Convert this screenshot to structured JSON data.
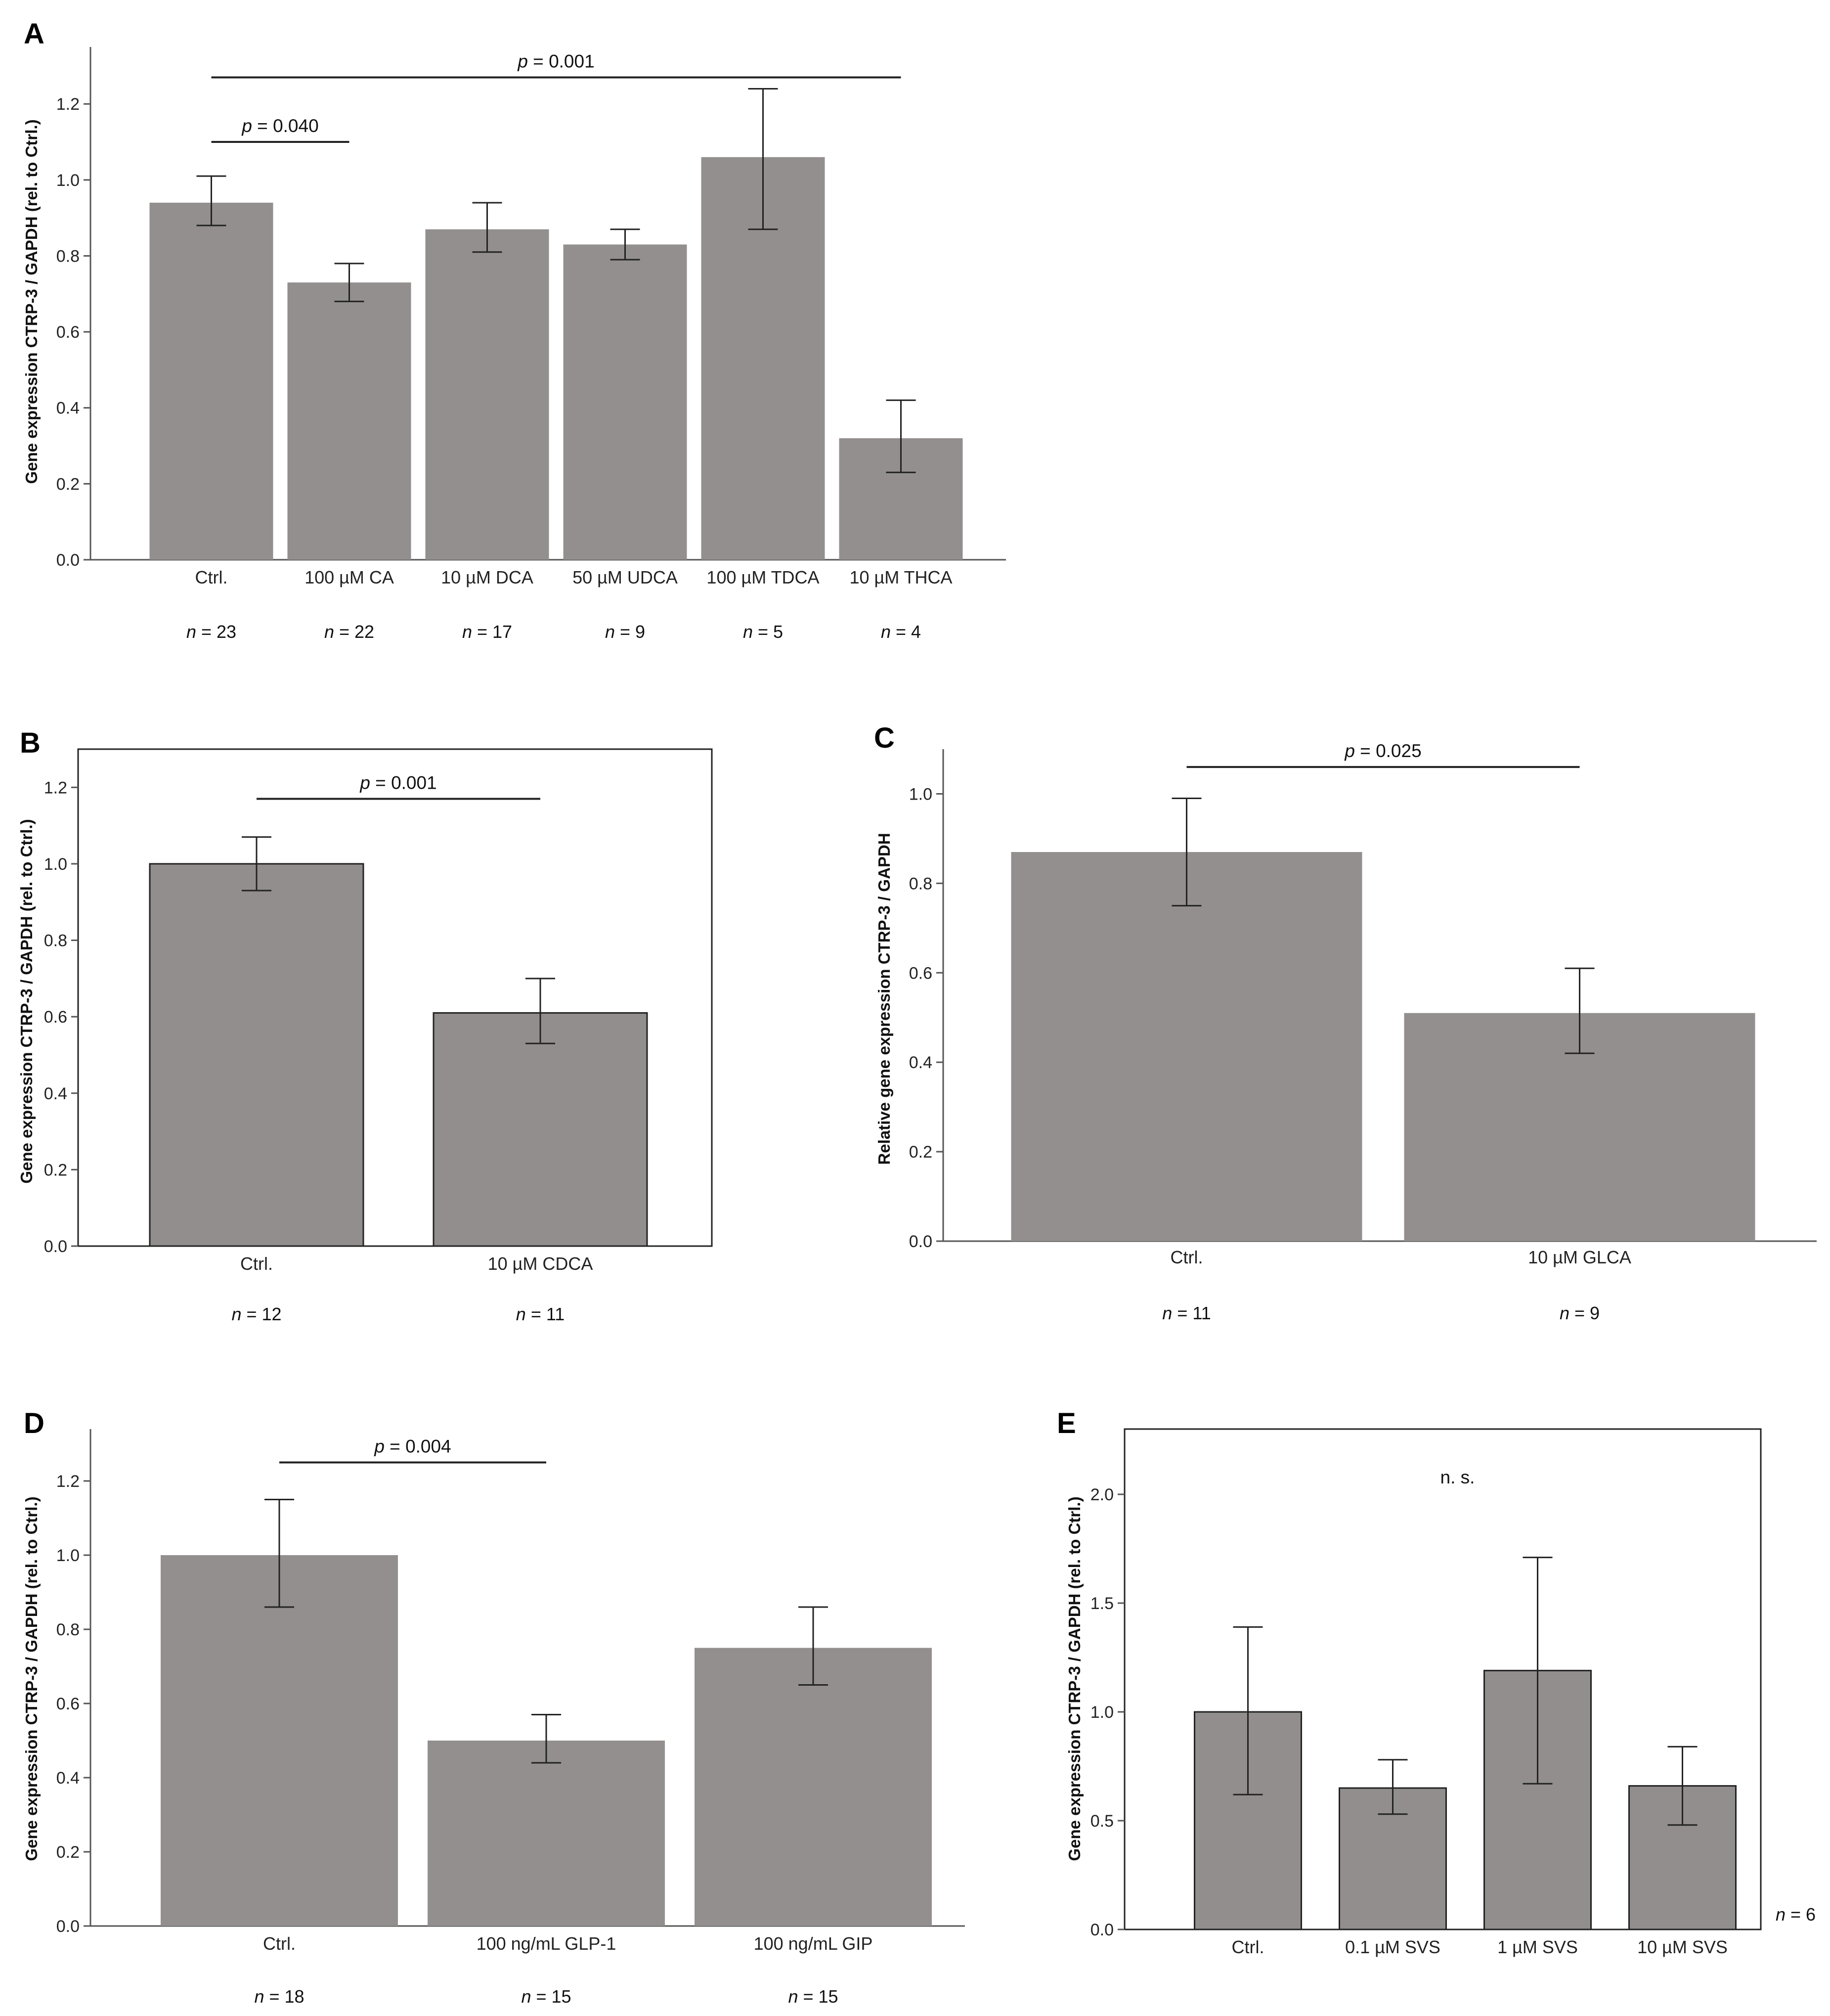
{
  "chart_data": [
    {
      "panel": "A",
      "type": "bar",
      "ylabel": "Gene expression CTRP-3 / GAPDH (rel. to Ctrl.)",
      "ylim": [
        0,
        1.35
      ],
      "ticks": [
        0.0,
        0.2,
        0.4,
        0.6,
        0.8,
        1.0,
        1.2
      ],
      "tick_labels": [
        "0.0",
        "0.2",
        "0.4",
        "0.6",
        "0.8",
        "1.0",
        "1.2"
      ],
      "categories": [
        "Ctrl.",
        "100 µM CA",
        "10 µM DCA",
        "50 µM UDCA",
        "100 µM TDCA",
        "10 µM THCA"
      ],
      "values": [
        0.94,
        0.73,
        0.87,
        0.83,
        1.06,
        0.32
      ],
      "err_low": [
        0.88,
        0.68,
        0.81,
        0.79,
        0.87,
        0.23
      ],
      "err_high": [
        1.01,
        0.78,
        0.94,
        0.87,
        1.24,
        0.42
      ],
      "n_labels": [
        "23",
        "22",
        "17",
        "9",
        "5",
        "4"
      ],
      "brackets": [
        {
          "from": 0,
          "to": 1,
          "level": 1.1,
          "p_label": "p",
          "p_text": " = 0.040"
        },
        {
          "from": 0,
          "to": 5,
          "level": 1.27,
          "p_label": "p",
          "p_text": " = 0.001"
        }
      ]
    },
    {
      "panel": "B",
      "type": "bar",
      "ylabel": "Gene expression CTRP-3 / GAPDH (rel. to Ctrl.)",
      "ylim": [
        0,
        1.3
      ],
      "ticks": [
        0.0,
        0.2,
        0.4,
        0.6,
        0.8,
        1.0,
        1.2
      ],
      "tick_labels": [
        "0.0",
        "0.2",
        "0.4",
        "0.6",
        "0.8",
        "1.0",
        "1.2"
      ],
      "categories": [
        "Ctrl.",
        "10 µM CDCA"
      ],
      "values": [
        1.0,
        0.61
      ],
      "err_low": [
        0.93,
        0.53
      ],
      "err_high": [
        1.07,
        0.7
      ],
      "n_labels": [
        "12",
        "11"
      ],
      "brackets": [
        {
          "from": 0,
          "to": 1,
          "level": 1.17,
          "p_label": "p",
          "p_text": " = 0.001"
        }
      ]
    },
    {
      "panel": "C",
      "type": "bar",
      "ylabel": "Relative gene expression CTRP-3 / GAPDH",
      "ylim": [
        0,
        1.1
      ],
      "ticks": [
        0.0,
        0.2,
        0.4,
        0.6,
        0.8,
        1.0
      ],
      "tick_labels": [
        "0.0",
        "0.2",
        "0.4",
        "0.6",
        "0.8",
        "1.0"
      ],
      "categories": [
        "Ctrl.",
        "10 µM GLCA"
      ],
      "values": [
        0.87,
        0.51
      ],
      "err_low": [
        0.75,
        0.42
      ],
      "err_high": [
        0.99,
        0.61
      ],
      "n_labels": [
        "11",
        "9"
      ],
      "brackets": [
        {
          "from": 0,
          "to": 1,
          "level": 1.06,
          "p_label": "p",
          "p_text": " = 0.025"
        }
      ]
    },
    {
      "panel": "D",
      "type": "bar",
      "ylabel": "Gene expression CTRP-3 / GAPDH (rel. to Ctrl.)",
      "ylim": [
        0,
        1.34
      ],
      "ticks": [
        0.0,
        0.2,
        0.4,
        0.6,
        0.8,
        1.0,
        1.2
      ],
      "tick_labels": [
        "0.0",
        "0.2",
        "0.4",
        "0.6",
        "0.8",
        "1.0",
        "1.2"
      ],
      "categories": [
        "Ctrl.",
        "100 ng/mL GLP-1",
        "100 ng/mL GIP"
      ],
      "values": [
        1.0,
        0.5,
        0.75
      ],
      "err_low": [
        0.86,
        0.44,
        0.65
      ],
      "err_high": [
        1.15,
        0.57,
        0.86
      ],
      "n_labels": [
        "18",
        "15",
        "15"
      ],
      "brackets": [
        {
          "from": 0,
          "to": 1,
          "level": 1.25,
          "p_label": "p",
          "p_text": " = 0.004"
        }
      ]
    },
    {
      "panel": "E",
      "type": "bar",
      "ylabel": "Gene expression CTRP-3 / GAPDH (rel. to Ctrl.)",
      "ylim": [
        0,
        2.3
      ],
      "ticks": [
        0.0,
        0.5,
        1.0,
        1.5,
        2.0
      ],
      "tick_labels": [
        "0.0",
        "0.5",
        "1.0",
        "1.5",
        "2.0"
      ],
      "categories": [
        "Ctrl.",
        "0.1 µM SVS",
        "1 µM SVS",
        "10 µM SVS"
      ],
      "values": [
        1.0,
        0.65,
        1.19,
        0.66
      ],
      "err_low": [
        0.62,
        0.53,
        0.67,
        0.48
      ],
      "err_high": [
        1.39,
        0.78,
        1.71,
        0.84
      ],
      "annotation": "n. s.",
      "n_side_label": "6",
      "brackets": []
    }
  ]
}
